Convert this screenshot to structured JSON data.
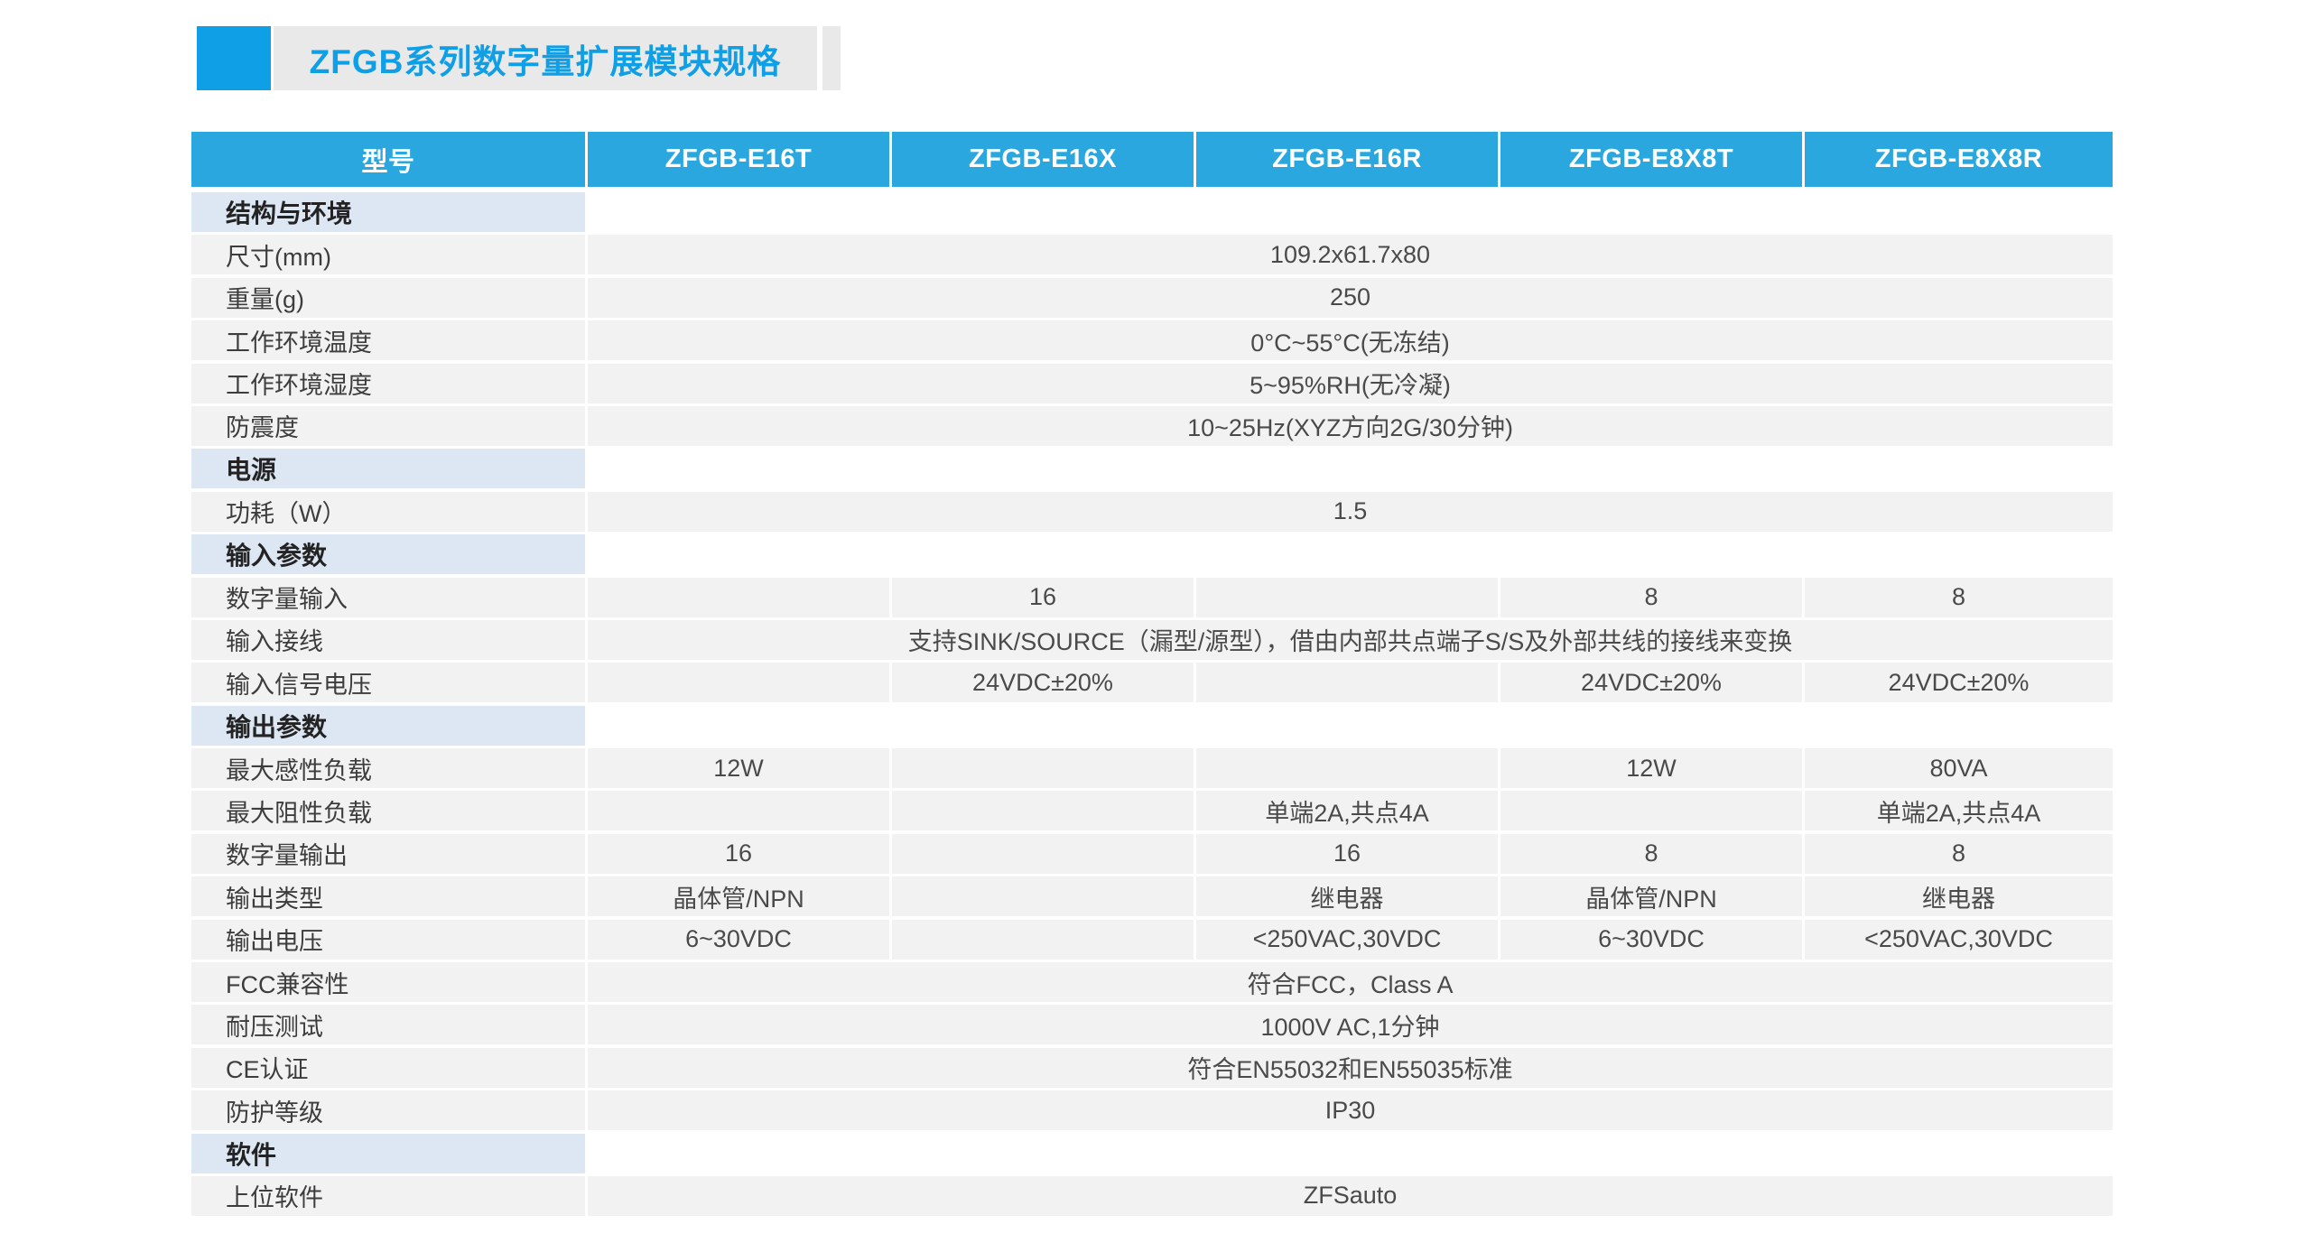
{
  "page": {
    "title": "ZFGB系列数字量扩展模块规格"
  },
  "colors": {
    "accent_blue": "#0f9fe6",
    "header_blue": "#2aa7de",
    "section_bg": "#dde6f3",
    "row_bg": "#f2f2f3",
    "title_bar_bg": "#e9e9e9"
  },
  "table": {
    "header": [
      "型号",
      "ZFGB-E16T",
      "ZFGB-E16X",
      "ZFGB-E16R",
      "ZFGB-E8X8T",
      "ZFGB-E8X8R"
    ],
    "rows": [
      {
        "type": "section",
        "label": "结构与环境"
      },
      {
        "type": "span",
        "label": "尺寸(mm)",
        "value": "109.2x61.7x80"
      },
      {
        "type": "span",
        "label": "重量(g)",
        "value": "250"
      },
      {
        "type": "span",
        "label": "工作环境温度",
        "value": "0°C~55°C(无冻结)"
      },
      {
        "type": "span",
        "label": "工作环境湿度",
        "value": "5~95%RH(无冷凝)"
      },
      {
        "type": "span",
        "label": "防震度",
        "value": "10~25Hz(XYZ方向2G/30分钟)"
      },
      {
        "type": "section",
        "label": "电源"
      },
      {
        "type": "span",
        "label": "功耗（W）",
        "value": "1.5"
      },
      {
        "type": "section",
        "label": "输入参数"
      },
      {
        "type": "cells",
        "label": "数字量输入",
        "values": [
          "",
          "16",
          "",
          "8",
          "8"
        ]
      },
      {
        "type": "span",
        "label": "输入接线",
        "value": "支持SINK/SOURCE（漏型/源型），借由内部共点端子S/S及外部共线的接线来变换"
      },
      {
        "type": "cells",
        "label": "输入信号电压",
        "values": [
          "",
          "24VDC±20%",
          "",
          "24VDC±20%",
          "24VDC±20%"
        ]
      },
      {
        "type": "section",
        "label": "输出参数"
      },
      {
        "type": "cells",
        "label": "最大感性负载",
        "values": [
          "12W",
          "",
          "",
          "12W",
          "80VA"
        ]
      },
      {
        "type": "cells",
        "label": "最大阻性负载",
        "values": [
          "",
          "",
          "单端2A,共点4A",
          "",
          "单端2A,共点4A"
        ]
      },
      {
        "type": "cells",
        "label": "数字量输出",
        "values": [
          "16",
          "",
          "16",
          "8",
          "8"
        ]
      },
      {
        "type": "cells",
        "label": "输出类型",
        "values": [
          "晶体管/NPN",
          "",
          "继电器",
          "晶体管/NPN",
          "继电器"
        ]
      },
      {
        "type": "cells",
        "label": "输出电压",
        "values": [
          "6~30VDC",
          "",
          "<250VAC,30VDC",
          "6~30VDC",
          "<250VAC,30VDC"
        ]
      },
      {
        "type": "span",
        "label": "FCC兼容性",
        "value": "符合FCC，Class A"
      },
      {
        "type": "span",
        "label": "耐压测试",
        "value": "1000V AC,1分钟"
      },
      {
        "type": "span",
        "label": "CE认证",
        "value": "符合EN55032和EN55035标准"
      },
      {
        "type": "span",
        "label": "防护等级",
        "value": "IP30"
      },
      {
        "type": "section",
        "label": "软件"
      },
      {
        "type": "span",
        "label": "上位软件",
        "value": "ZFSauto"
      }
    ]
  }
}
